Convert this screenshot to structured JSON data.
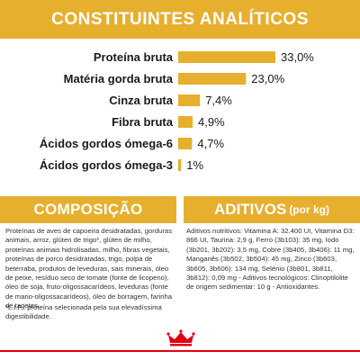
{
  "header": {
    "title": "CONSTITUINTES ANALÍTICOS"
  },
  "composition": {
    "title": "COMPOSIÇÃO",
    "text": "Proteínas de aves de capoeira desidratadas, gorduras animais, arroz, glúten de trigo*, glúten de milho, proteínas animais hidrolisadas, milho, fibras vegetais, proteínas de porco desidratadas, trigo, polpa de beterraba, produtos de leveduras, sais minerais, óleo de peixe, resíduo seco de tomate (fonte de licopeno), óleo de soja, fruto-oligossacarídeos, leveduras (fonte de mano-oligossacarídeos), óleo de borragem, farinha de tagetes.",
    "note": "*L.I.P.: proteína selecionada pela sua elevadíssima digestibilidade."
  },
  "additives": {
    "title": "ADITIVOS",
    "unit": "(por kg)",
    "text": "Aditivos nutritivos: Vitamina A: 32.400 UI, Vitamina D3: 866 UI, Taurina: 2,9 g, Ferro (3b103): 35 mg, Iodo (3b201, 3b202): 3,5 mg, Cobre (3b405, 3b406): 11 mg, Manganês (3b502, 3b504): 45 mg, Zinco (3b603, 3b605, 3b606): 134 mg, Selénio (3b801, 3b811, 3b812): 0,09 mg - Aditivos tecnológicos: Clinoptilolite de origem sedimentar: 10 g - Antioxidantes."
  },
  "brand": {
    "logo": "crown-logo",
    "accent": "#e6af2e",
    "red": "#e1000f"
  },
  "chart_data": {
    "type": "bar",
    "orientation": "horizontal",
    "title": "CONSTITUINTES ANALÍTICOS",
    "categories": [
      "Proteína bruta",
      "Matéria gorda bruta",
      "Cinza bruta",
      "Fibra bruta",
      "Ácidos gordos ómega-6",
      "Ácidos gordos ómega-3"
    ],
    "values": [
      33.0,
      23.0,
      7.4,
      4.9,
      4.7,
      1.0
    ],
    "labels": [
      "33,0%",
      "23,0%",
      "7,4%",
      "4,9%",
      "4,7%",
      "1%"
    ],
    "xlim": [
      0,
      33
    ],
    "grid": false,
    "color": "#e6af2e"
  }
}
